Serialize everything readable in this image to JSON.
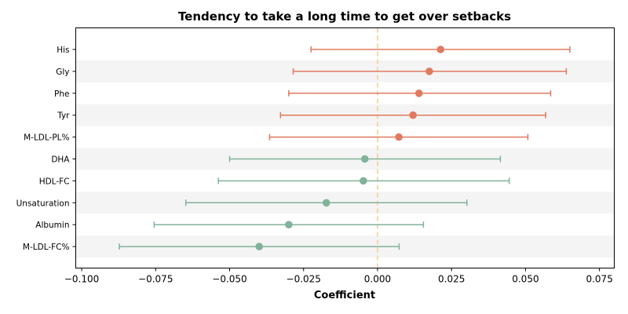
{
  "chart_data": {
    "type": "forest",
    "title": "Tendency to take a long time to get over setbacks",
    "xlabel": "Coefficient",
    "xlim": [
      -0.102,
      0.08
    ],
    "xticks": [
      -0.1,
      -0.075,
      -0.05,
      -0.025,
      0.0,
      0.025,
      0.05,
      0.075
    ],
    "xtick_labels": [
      "−0.100",
      "−0.075",
      "−0.050",
      "−0.025",
      "0.000",
      "0.025",
      "0.050",
      "0.075"
    ],
    "reference_line": 0,
    "colors": {
      "positive": "#e07a5f",
      "negative": "#81b29a",
      "reference": "#f2cc8f",
      "band": "#f4f4f4"
    },
    "points": [
      {
        "label": "His",
        "estimate": 0.0213,
        "lower": -0.0225,
        "upper": 0.065
      },
      {
        "label": "Gly",
        "estimate": 0.0175,
        "lower": -0.0285,
        "upper": 0.0638
      },
      {
        "label": "Phe",
        "estimate": 0.014,
        "lower": -0.03,
        "upper": 0.0585
      },
      {
        "label": "Tyr",
        "estimate": 0.012,
        "lower": -0.0328,
        "upper": 0.0568
      },
      {
        "label": "M-LDL-PL%",
        "estimate": 0.0072,
        "lower": -0.0365,
        "upper": 0.0508
      },
      {
        "label": "DHA",
        "estimate": -0.0043,
        "lower": -0.05,
        "upper": 0.0415
      },
      {
        "label": "HDL-FC",
        "estimate": -0.0048,
        "lower": -0.0538,
        "upper": 0.0445
      },
      {
        "label": "Unsaturation",
        "estimate": -0.0173,
        "lower": -0.0648,
        "upper": 0.0302
      },
      {
        "label": "Albumin",
        "estimate": -0.03,
        "lower": -0.0755,
        "upper": 0.0155
      },
      {
        "label": "M-LDL-FC%",
        "estimate": -0.04,
        "lower": -0.0873,
        "upper": 0.0073
      }
    ]
  }
}
